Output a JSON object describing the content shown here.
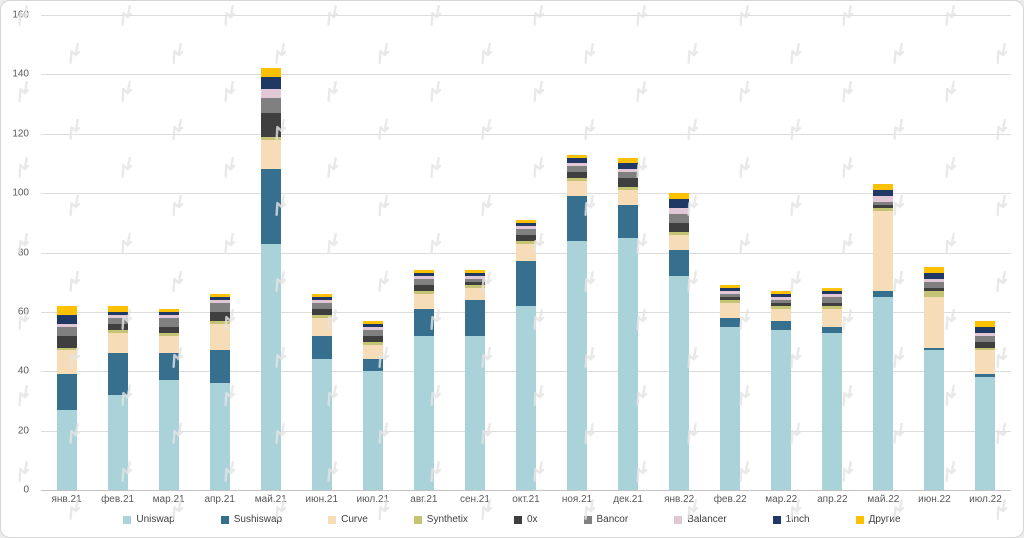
{
  "chart_data": {
    "type": "bar",
    "stacked": true,
    "title": "",
    "xlabel": "",
    "ylabel": "",
    "ylim": [
      0,
      160
    ],
    "ytick": 20,
    "grid": true,
    "legend_position": "bottom",
    "categories": [
      "янв.21",
      "фев.21",
      "мар.21",
      "апр.21",
      "май.21",
      "июн.21",
      "июл.21",
      "авг.21",
      "сен.21",
      "окт.21",
      "ноя.21",
      "дек.21",
      "янв.22",
      "фев.22",
      "мар.22",
      "апр.22",
      "май.22",
      "июн.22",
      "июл.22"
    ],
    "series": [
      {
        "name": "Uniswap",
        "color": "#a9d2d9",
        "values": [
          27,
          32,
          37,
          36,
          83,
          44,
          40,
          52,
          52,
          62,
          84,
          85,
          72,
          55,
          54,
          53,
          65,
          47,
          38
        ]
      },
      {
        "name": "Sushiswap",
        "color": "#376f8e",
        "values": [
          12,
          14,
          9,
          11,
          25,
          8,
          4,
          9,
          12,
          15,
          15,
          11,
          9,
          3,
          3,
          2,
          2,
          1,
          1
        ]
      },
      {
        "name": "Curve",
        "color": "#f7dcb8",
        "values": [
          8,
          7,
          6,
          9,
          10,
          6,
          5,
          5,
          4,
          6,
          5,
          5,
          5,
          5,
          4,
          6,
          27,
          17,
          8
        ]
      },
      {
        "name": "Synthetix",
        "color": "#c5c475",
        "values": [
          1,
          1,
          1,
          1,
          1,
          1,
          1,
          1,
          1,
          1,
          1,
          1,
          1,
          1,
          1,
          1,
          1,
          2,
          1
        ]
      },
      {
        "name": "0x",
        "color": "#3f3f3f",
        "values": [
          4,
          2,
          2,
          3,
          8,
          2,
          2,
          2,
          1,
          2,
          2,
          3,
          3,
          1,
          1,
          1,
          1,
          1,
          2
        ]
      },
      {
        "name": "Bancor",
        "color": "#808080",
        "values": [
          3,
          2,
          3,
          3,
          5,
          2,
          2,
          2,
          1,
          2,
          2,
          2,
          3,
          1,
          1,
          2,
          1,
          2,
          2
        ]
      },
      {
        "name": "Balancer",
        "color": "#e2c7d6",
        "values": [
          1,
          1,
          1,
          1,
          3,
          1,
          1,
          1,
          1,
          1,
          1,
          1,
          2,
          1,
          1,
          1,
          2,
          1,
          1
        ]
      },
      {
        "name": "1inch",
        "color": "#203864",
        "values": [
          3,
          1,
          1,
          1,
          4,
          1,
          1,
          1,
          1,
          1,
          2,
          2,
          3,
          1,
          1,
          1,
          2,
          2,
          2
        ]
      },
      {
        "name": "Другие",
        "color": "#fdc101",
        "values": [
          3,
          2,
          1,
          1,
          3,
          1,
          1,
          1,
          1,
          1,
          1,
          2,
          2,
          1,
          1,
          1,
          2,
          2,
          2
        ]
      }
    ]
  },
  "watermark": {
    "name": "forklog-logo-watermark",
    "color": "#e4e4e4"
  }
}
